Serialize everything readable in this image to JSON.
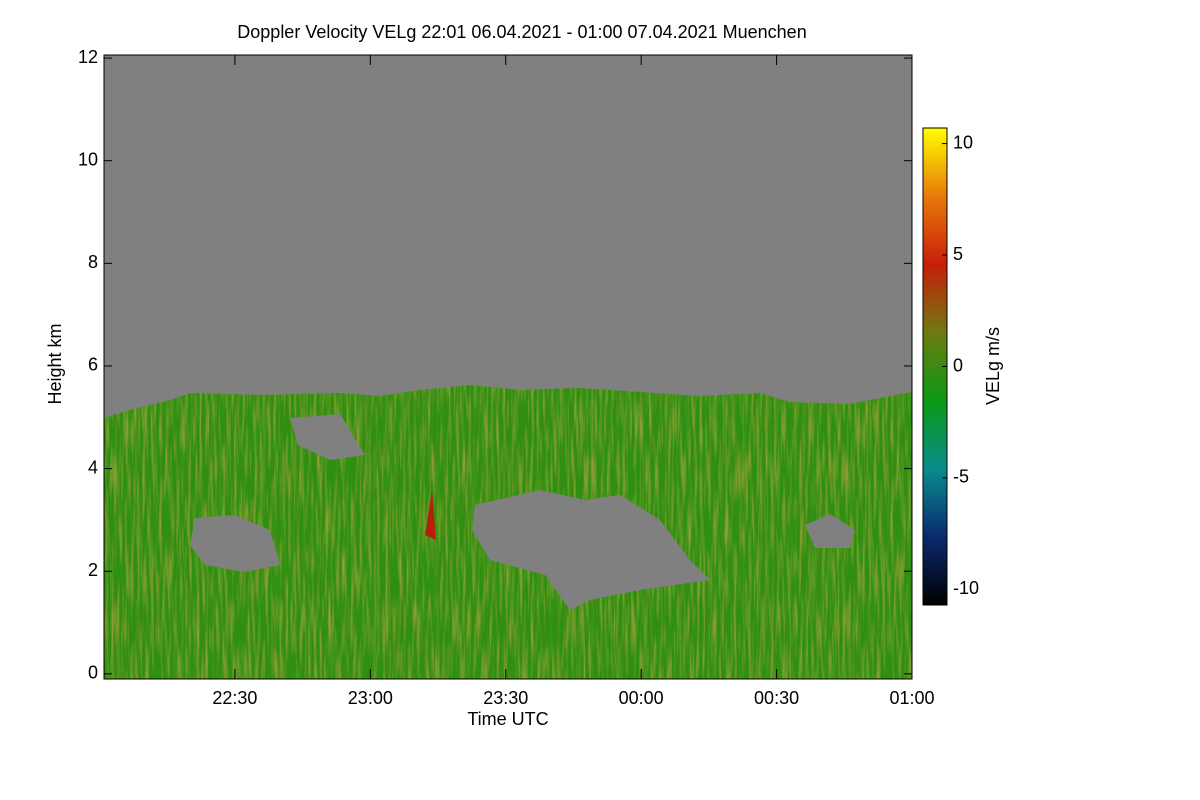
{
  "chart_data": {
    "type": "heatmap",
    "title": "Doppler Velocity VELg   22:01 06.04.2021 - 01:00 07.04.2021 Muenchen",
    "xlabel": "Time UTC",
    "ylabel": "Height km",
    "xlim": [
      1,
      180
    ],
    "xticks": [
      {
        "value": 30,
        "label": "22:30"
      },
      {
        "value": 60,
        "label": "23:00"
      },
      {
        "value": 90,
        "label": "23:30"
      },
      {
        "value": 120,
        "label": "00:00"
      },
      {
        "value": 150,
        "label": "00:30"
      },
      {
        "value": 180,
        "label": "01:00"
      }
    ],
    "ylim": [
      -0.1,
      12.06
    ],
    "yticks": [
      0,
      2,
      4,
      6,
      8,
      10,
      12
    ],
    "colorbar_label": "VELg m/s",
    "clim": [
      -10.7,
      10.7
    ],
    "cticks": [
      -10,
      -5,
      0,
      5,
      10
    ],
    "colormap": [
      "#000000",
      "#0a2a6e",
      "#0a8c8c",
      "#0a9a14",
      "#6e7a10",
      "#c81e0a",
      "#e87a0a",
      "#ffff00"
    ]
  }
}
